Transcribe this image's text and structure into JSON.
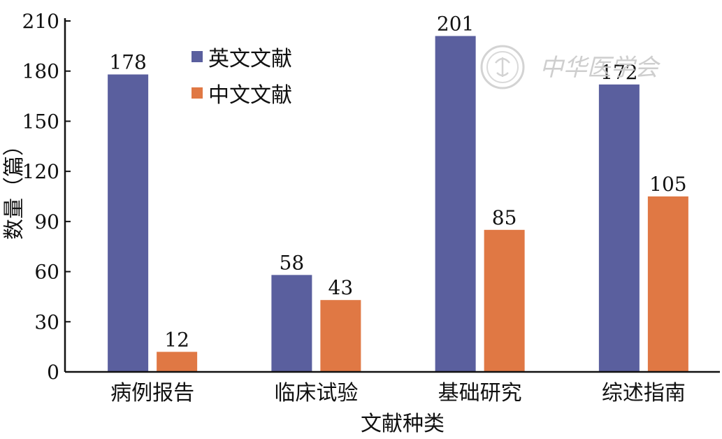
{
  "chart_data": {
    "type": "bar",
    "categories": [
      "病例报告",
      "临床试验",
      "基础研究",
      "综述指南"
    ],
    "series": [
      {
        "name": "英文文献",
        "values": [
          178,
          58,
          201,
          172
        ],
        "color": "#5a5f9e"
      },
      {
        "name": "中文文献",
        "values": [
          12,
          43,
          85,
          105
        ],
        "color": "#e07844"
      }
    ],
    "xlabel": "文献种类",
    "ylabel": "数量（篇）",
    "ylim": [
      0,
      210
    ],
    "yticks": [
      0,
      30,
      60,
      90,
      120,
      150,
      180,
      210
    ],
    "grid": false,
    "legend_position": "top-left"
  },
  "watermark": {
    "text": "中华医学会",
    "icon": "society-seal-icon"
  }
}
